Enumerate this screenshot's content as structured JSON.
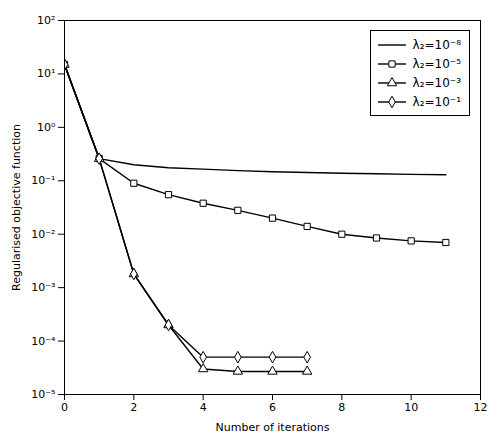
{
  "chart_data": {
    "type": "line",
    "series": [
      {
        "name": "λ₂=10⁻⁸",
        "x": [
          0,
          1,
          2,
          3,
          4,
          5,
          6,
          7,
          8,
          9,
          10,
          11
        ],
        "values": [
          15.0,
          0.26,
          0.2,
          0.175,
          0.165,
          0.155,
          0.148,
          0.143,
          0.138,
          0.135,
          0.132,
          0.13
        ],
        "marker": "none",
        "line_style": "solid",
        "color": "black"
      },
      {
        "name": "λ₂=10⁻⁵",
        "x": [
          0,
          1,
          2,
          3,
          4,
          5,
          6,
          7,
          8,
          9,
          10,
          11
        ],
        "values": [
          15.0,
          0.26,
          0.09,
          0.055,
          0.038,
          0.028,
          0.02,
          0.014,
          0.01,
          0.0085,
          0.0075,
          0.007
        ],
        "marker": "square",
        "line_style": "solid",
        "color": "black"
      },
      {
        "name": "λ₂=10⁻³",
        "x": [
          0,
          1,
          2,
          3,
          4,
          5,
          6,
          7
        ],
        "values": [
          15.0,
          0.26,
          0.0018,
          0.0002,
          3e-05,
          2.7e-05,
          2.7e-05,
          2.7e-05
        ],
        "marker": "triangle",
        "line_style": "solid",
        "color": "black"
      },
      {
        "name": "λ₂=10⁻¹",
        "x": [
          0,
          1,
          2,
          3,
          4,
          5,
          6,
          7
        ],
        "values": [
          15.0,
          0.26,
          0.0018,
          0.0002,
          5e-05,
          5e-05,
          5e-05,
          5e-05
        ],
        "marker": "diamond",
        "line_style": "solid",
        "color": "black"
      }
    ],
    "xlabel": "Number of iterations",
    "ylabel": "Regularised objective function",
    "xlim": [
      0,
      12
    ],
    "ylim": [
      1e-05,
      100.0
    ],
    "xticks": [
      0,
      2,
      4,
      6,
      8,
      10,
      12
    ],
    "yticks": [
      {
        "value": 1e-05,
        "label": "10⁻⁵"
      },
      {
        "value": 0.0001,
        "label": "10⁻⁴"
      },
      {
        "value": 0.001,
        "label": "10⁻³"
      },
      {
        "value": 0.01,
        "label": "10⁻²"
      },
      {
        "value": 0.1,
        "label": "10⁻¹"
      },
      {
        "value": 1,
        "label": "10⁰"
      },
      {
        "value": 10,
        "label": "10¹"
      },
      {
        "value": 100,
        "label": "10²"
      }
    ],
    "log": "y",
    "grid": false,
    "legend": "upper right"
  }
}
